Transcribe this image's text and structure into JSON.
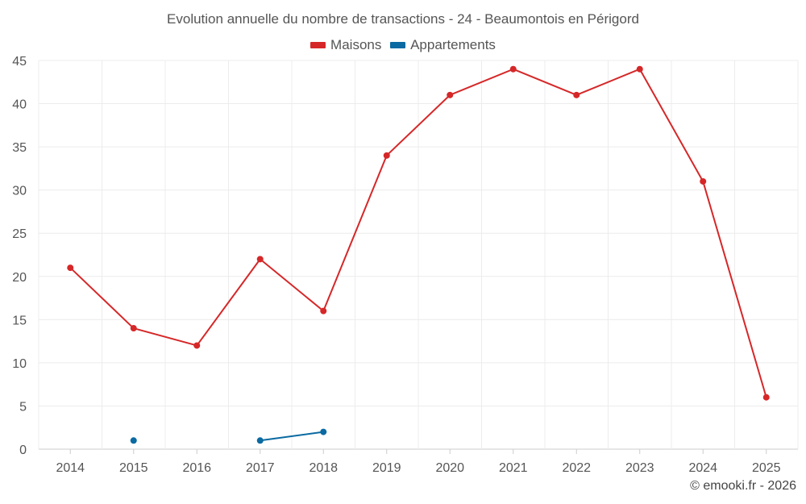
{
  "chart_data": {
    "type": "line",
    "title": "Evolution annuelle du nombre de transactions - 24 - Beaumontois en Périgord",
    "xlabel": "",
    "ylabel": "",
    "categories": [
      "2014",
      "2015",
      "2016",
      "2017",
      "2018",
      "2019",
      "2020",
      "2021",
      "2022",
      "2023",
      "2024",
      "2025"
    ],
    "ylim": [
      0,
      45
    ],
    "yticks": [
      0,
      5,
      10,
      15,
      20,
      25,
      30,
      35,
      40,
      45
    ],
    "grid": true,
    "legend_position": "top-center",
    "series": [
      {
        "name": "Maisons",
        "color": "#d62728",
        "values": [
          21,
          14,
          12,
          22,
          16,
          34,
          41,
          44,
          41,
          44,
          31,
          6
        ]
      },
      {
        "name": "Appartements",
        "color": "#0a6aa1",
        "values": [
          null,
          1,
          null,
          1,
          2,
          null,
          null,
          null,
          null,
          null,
          null,
          null
        ]
      }
    ]
  },
  "credit": "© emooki.fr - 2026"
}
